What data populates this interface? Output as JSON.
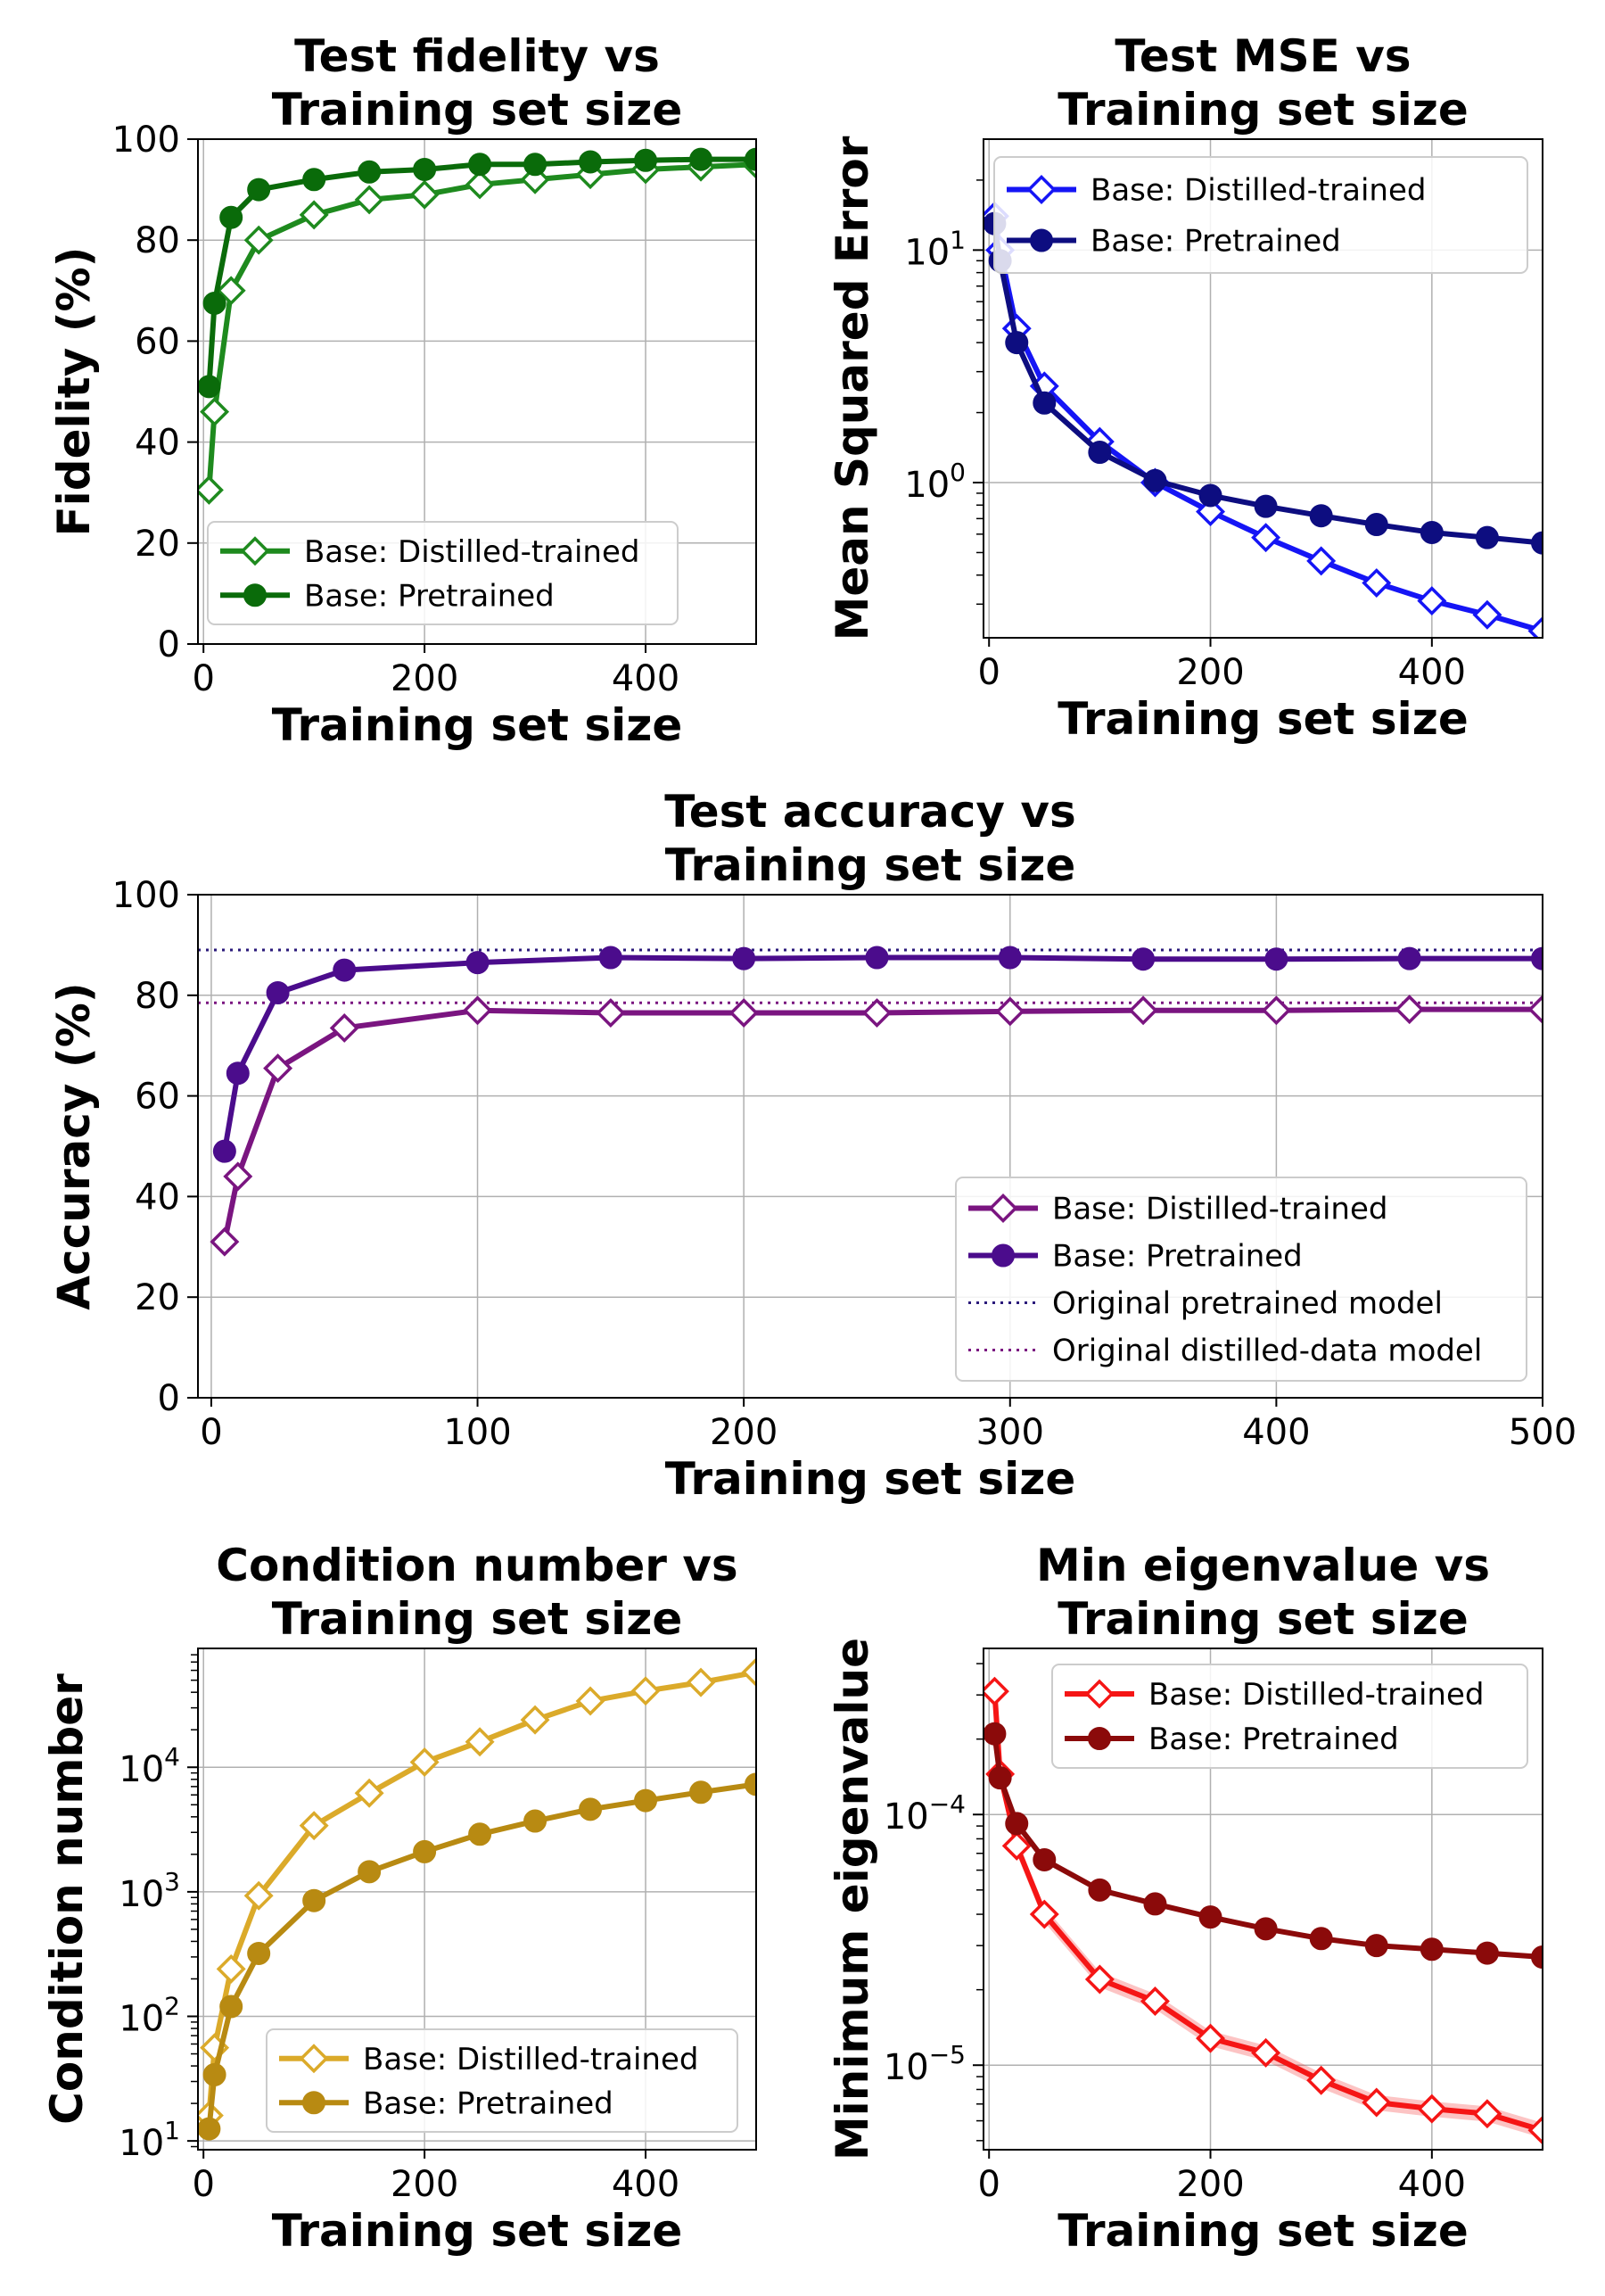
{
  "chart_data": [
    {
      "id": "fidelity",
      "type": "line",
      "title": [
        "Test fidelity vs",
        "Training set size"
      ],
      "xlabel": "Training set size",
      "ylabel": "Fidelity (%)",
      "xlim": [
        -5,
        500
      ],
      "ylim": [
        0,
        100
      ],
      "yscale": "linear",
      "grid": true,
      "xticks": [
        {
          "v": 0,
          "label": "0"
        },
        {
          "v": 200,
          "label": "200"
        },
        {
          "v": 400,
          "label": "400"
        }
      ],
      "yticks": [
        {
          "v": 0,
          "label": "0"
        },
        {
          "v": 20,
          "label": "20"
        },
        {
          "v": 40,
          "label": "40"
        },
        {
          "v": 60,
          "label": "60"
        },
        {
          "v": 80,
          "label": "80"
        },
        {
          "v": 100,
          "label": "100"
        }
      ],
      "legend": "lower-right",
      "series": [
        {
          "name": "Base: Distilled-trained",
          "color": "#1e8a1e",
          "marker": "diamond-open",
          "x": [
            5,
            10,
            25,
            50,
            100,
            150,
            200,
            250,
            300,
            350,
            400,
            450,
            500
          ],
          "y": [
            30.5,
            46,
            70,
            80,
            85,
            88,
            89,
            91,
            92,
            93,
            94,
            94.5,
            95
          ]
        },
        {
          "name": "Base: Pretrained",
          "color": "#0a6b0a",
          "marker": "circle",
          "x": [
            5,
            10,
            25,
            50,
            100,
            150,
            200,
            250,
            300,
            350,
            400,
            450,
            500
          ],
          "y": [
            51,
            67.5,
            84.5,
            90,
            92,
            93.5,
            94,
            95,
            95,
            95.5,
            95.8,
            96,
            96
          ]
        }
      ]
    },
    {
      "id": "mse",
      "type": "line",
      "title": [
        "Test MSE vs",
        "Training set size"
      ],
      "xlabel": "Training set size",
      "ylabel": "Mean Squared Error",
      "xlim": [
        -5,
        500
      ],
      "ylim": [
        0.215,
        30
      ],
      "yscale": "log",
      "grid": true,
      "xticks": [
        {
          "v": 0,
          "label": "0"
        },
        {
          "v": 200,
          "label": "200"
        },
        {
          "v": 400,
          "label": "400"
        }
      ],
      "yticks": [
        {
          "v": 1,
          "base": "10",
          "exp": "0"
        },
        {
          "v": 10,
          "base": "10",
          "exp": "1"
        }
      ],
      "legend": "upper-right",
      "series": [
        {
          "name": "Base: Distilled-trained",
          "color": "#1515f5",
          "marker": "diamond-open",
          "x": [
            5,
            10,
            25,
            50,
            100,
            150,
            200,
            250,
            300,
            350,
            400,
            450,
            500
          ],
          "y": [
            14,
            10,
            4.6,
            2.6,
            1.5,
            1.0,
            0.75,
            0.58,
            0.46,
            0.37,
            0.31,
            0.27,
            0.23
          ]
        },
        {
          "name": "Base: Pretrained",
          "color": "#0d0d80",
          "marker": "circle",
          "x": [
            5,
            10,
            25,
            50,
            100,
            150,
            200,
            250,
            300,
            350,
            400,
            450,
            500
          ],
          "y": [
            13,
            9,
            4.0,
            2.2,
            1.35,
            1.02,
            0.88,
            0.79,
            0.72,
            0.66,
            0.61,
            0.58,
            0.55
          ]
        }
      ]
    },
    {
      "id": "accuracy",
      "type": "line",
      "title": [
        "Test accuracy vs",
        "Training set size"
      ],
      "xlabel": "Training set size",
      "ylabel": "Accuracy (%)",
      "xlim": [
        -5,
        500
      ],
      "ylim": [
        0,
        100
      ],
      "yscale": "linear",
      "grid": true,
      "xticks": [
        {
          "v": 0,
          "label": "0"
        },
        {
          "v": 100,
          "label": "100"
        },
        {
          "v": 200,
          "label": "200"
        },
        {
          "v": 300,
          "label": "300"
        },
        {
          "v": 400,
          "label": "400"
        },
        {
          "v": 500,
          "label": "500"
        }
      ],
      "yticks": [
        {
          "v": 0,
          "label": "0"
        },
        {
          "v": 20,
          "label": "20"
        },
        {
          "v": 40,
          "label": "40"
        },
        {
          "v": 60,
          "label": "60"
        },
        {
          "v": 80,
          "label": "80"
        },
        {
          "v": 100,
          "label": "100"
        }
      ],
      "legend": "lower-right",
      "series": [
        {
          "name": "Base: Distilled-trained",
          "color": "#7a1580",
          "marker": "diamond-open",
          "x": [
            5,
            10,
            25,
            50,
            100,
            150,
            200,
            250,
            300,
            350,
            400,
            450,
            500
          ],
          "y": [
            31,
            44,
            65.5,
            73.5,
            77,
            76.5,
            76.5,
            76.5,
            76.8,
            77,
            77,
            77.2,
            77.2
          ]
        },
        {
          "name": "Base: Pretrained",
          "color": "#4b0c8c",
          "marker": "circle",
          "x": [
            5,
            10,
            25,
            50,
            100,
            150,
            200,
            250,
            300,
            350,
            400,
            450,
            500
          ],
          "y": [
            49,
            64.5,
            80.5,
            85,
            86.5,
            87.5,
            87.3,
            87.5,
            87.5,
            87.2,
            87.2,
            87.3,
            87.3
          ]
        }
      ],
      "reference_lines": [
        {
          "name": "Original pretrained model",
          "color": "#2a1a7a",
          "y": 89
        },
        {
          "name": "Original distilled-data model",
          "color": "#7a1580",
          "y": 78.5
        }
      ]
    },
    {
      "id": "condition",
      "type": "line",
      "title": [
        "Condition number vs",
        "Training set size"
      ],
      "xlabel": "Training set size",
      "ylabel": "Condition number",
      "xlim": [
        -5,
        500
      ],
      "ylim": [
        8.5,
        90000
      ],
      "yscale": "log",
      "grid": true,
      "xticks": [
        {
          "v": 0,
          "label": "0"
        },
        {
          "v": 200,
          "label": "200"
        },
        {
          "v": 400,
          "label": "400"
        }
      ],
      "yticks": [
        {
          "v": 10,
          "base": "10",
          "exp": "1"
        },
        {
          "v": 100,
          "base": "10",
          "exp": "2"
        },
        {
          "v": 1000,
          "base": "10",
          "exp": "3"
        },
        {
          "v": 10000,
          "base": "10",
          "exp": "4"
        }
      ],
      "legend": "lower-right",
      "series": [
        {
          "name": "Base: Distilled-trained",
          "color": "#dbaa2a",
          "marker": "diamond-open",
          "x": [
            5,
            10,
            25,
            50,
            100,
            150,
            200,
            250,
            300,
            350,
            400,
            450,
            500
          ],
          "y": [
            16,
            56,
            240,
            930,
            3400,
            6200,
            11000,
            16000,
            24000,
            34000,
            41000,
            48000,
            58000
          ]
        },
        {
          "name": "Base: Pretrained",
          "color": "#b88a12",
          "marker": "circle",
          "x": [
            5,
            10,
            25,
            50,
            100,
            150,
            200,
            250,
            300,
            350,
            400,
            450,
            500
          ],
          "y": [
            12.5,
            34,
            120,
            320,
            850,
            1450,
            2100,
            2900,
            3700,
            4600,
            5400,
            6300,
            7300
          ]
        }
      ]
    },
    {
      "id": "mineig",
      "type": "line",
      "title": [
        "Min eigenvalue vs",
        "Training set size"
      ],
      "xlabel": "Training set size",
      "ylabel": "Minimum eigenvalue",
      "xlim": [
        -5,
        500
      ],
      "ylim": [
        4.6e-06,
        0.00046
      ],
      "yscale": "log",
      "grid": true,
      "xticks": [
        {
          "v": 0,
          "label": "0"
        },
        {
          "v": 200,
          "label": "200"
        },
        {
          "v": 400,
          "label": "400"
        }
      ],
      "yticks": [
        {
          "v": 1e-05,
          "base": "10",
          "exp": "−5"
        },
        {
          "v": 0.0001,
          "base": "10",
          "exp": "−4"
        }
      ],
      "legend": "upper-right",
      "series": [
        {
          "name": "Base: Distilled-trained",
          "color": "#f51515",
          "marker": "diamond-open",
          "band": true,
          "x": [
            5,
            10,
            25,
            50,
            100,
            150,
            200,
            250,
            300,
            350,
            400,
            450,
            500
          ],
          "y": [
            0.00031,
            0.000145,
            7.5e-05,
            4e-05,
            2.2e-05,
            1.8e-05,
            1.28e-05,
            1.12e-05,
            8.7e-06,
            7.1e-06,
            6.7e-06,
            6.4e-06,
            5.5e-06
          ]
        },
        {
          "name": "Base: Pretrained",
          "color": "#8b0a0a",
          "marker": "circle",
          "x": [
            5,
            10,
            25,
            50,
            100,
            150,
            200,
            250,
            300,
            350,
            400,
            450,
            500
          ],
          "y": [
            0.00021,
            0.00014,
            9.2e-05,
            6.6e-05,
            5e-05,
            4.4e-05,
            3.9e-05,
            3.5e-05,
            3.2e-05,
            3e-05,
            2.9e-05,
            2.8e-05,
            2.7e-05
          ]
        }
      ]
    }
  ]
}
